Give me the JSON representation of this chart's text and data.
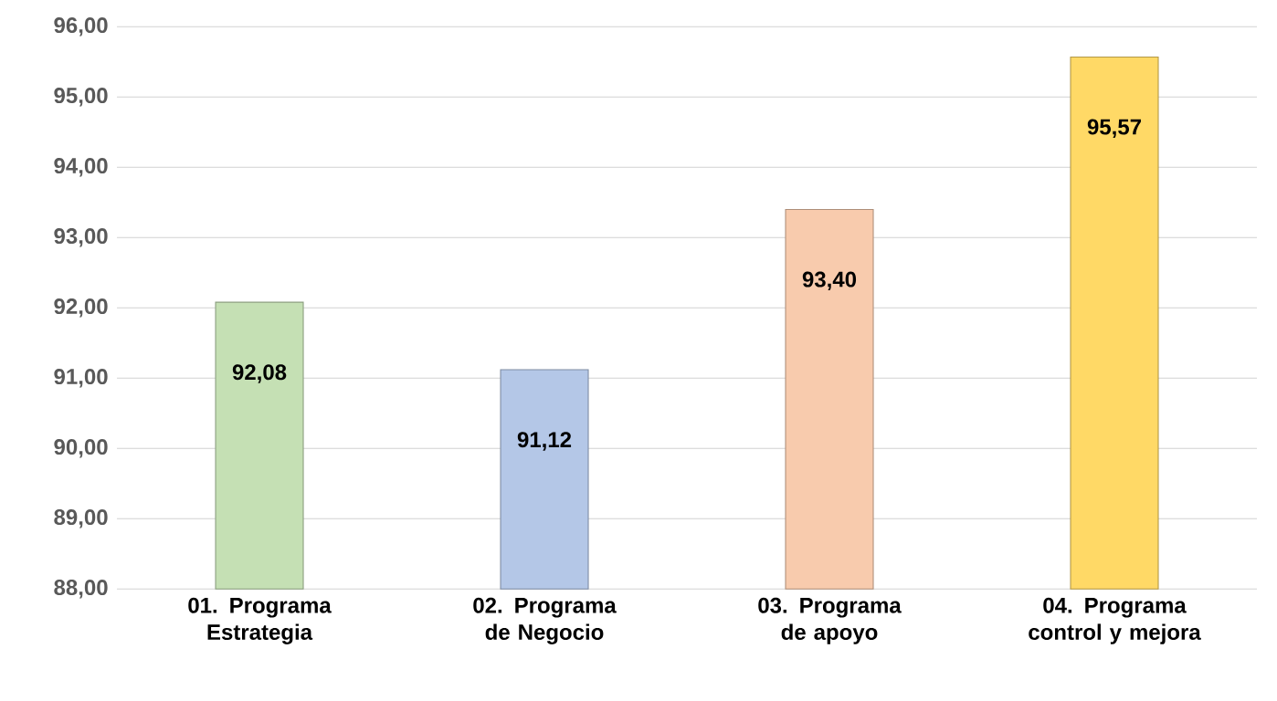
{
  "chart_data": {
    "type": "bar",
    "categories": [
      "01. Programa Estrategia",
      "02. Programa de Negocio",
      "03. Programa de apoyo",
      "04. Programa control y mejora"
    ],
    "values": [
      92.08,
      91.12,
      93.4,
      95.57
    ],
    "colors": [
      "#c5e0b4",
      "#b4c7e7",
      "#f8cbad",
      "#ffd966"
    ],
    "value_labels": [
      "92,08",
      "91,12",
      "93,40",
      "95,57"
    ],
    "ylim": [
      88,
      96
    ],
    "yticks": [
      {
        "value": 88,
        "label": "88,00"
      },
      {
        "value": 89,
        "label": "89,00"
      },
      {
        "value": 90,
        "label": "90,00"
      },
      {
        "value": 91,
        "label": "91,00"
      },
      {
        "value": 92,
        "label": "92,00"
      },
      {
        "value": 93,
        "label": "93,00"
      },
      {
        "value": 94,
        "label": "94,00"
      },
      {
        "value": 95,
        "label": "95,00"
      },
      {
        "value": 96,
        "label": "96,00"
      }
    ],
    "grid": "y"
  }
}
